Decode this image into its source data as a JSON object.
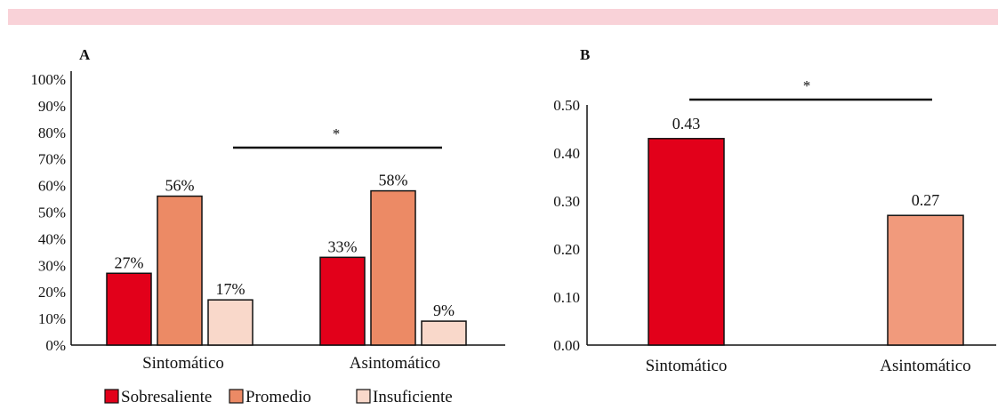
{
  "colors": {
    "sobresaliente": "#e2001a",
    "promedio": "#ec8a65",
    "insuficiente": "#f9d8ca",
    "asintomatico_b": "#f19a7c",
    "band": "#f9d2d8"
  },
  "chart_data": [
    {
      "panel": "A",
      "type": "bar",
      "categories": [
        "Sintomático",
        "Asintomático"
      ],
      "series": [
        {
          "name": "Sobresaliente",
          "values": [
            27,
            33
          ],
          "labels": [
            "27%",
            "33%"
          ],
          "color": "#e2001a"
        },
        {
          "name": "Promedio",
          "values": [
            56,
            58
          ],
          "labels": [
            "56%",
            "58%"
          ],
          "color": "#ec8a65"
        },
        {
          "name": "Insuficiente",
          "values": [
            17,
            9
          ],
          "labels": [
            "17%",
            "9%"
          ],
          "color": "#f9d8ca"
        }
      ],
      "ylim": [
        0,
        100
      ],
      "yticks": [
        "0%",
        "10%",
        "20%",
        "30%",
        "40%",
        "50%",
        "60%",
        "70%",
        "80%",
        "90%",
        "100%"
      ],
      "significance": "*",
      "legend_position": "bottom"
    },
    {
      "panel": "B",
      "type": "bar",
      "categories": [
        "Sintomático",
        "Asintomático"
      ],
      "values": [
        0.43,
        0.27
      ],
      "labels": [
        "0.43",
        "0.27"
      ],
      "colors": [
        "#e2001a",
        "#f19a7c"
      ],
      "ylim": [
        0,
        0.5
      ],
      "yticks": [
        "0.00",
        "0.10",
        "0.20",
        "0.30",
        "0.40",
        "0.50"
      ],
      "significance": "*"
    }
  ]
}
